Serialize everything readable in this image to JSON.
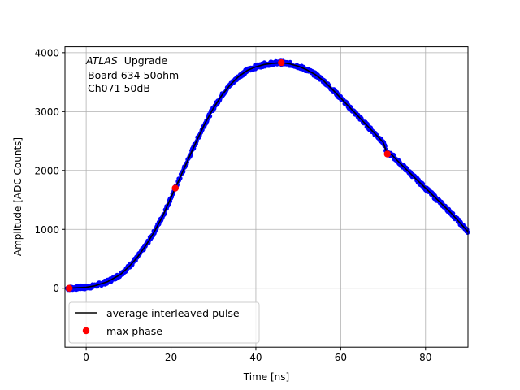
{
  "chart_data": {
    "type": "scatter",
    "xlabel": "Time [ns]",
    "ylabel": "Amplitude [ADC Counts]",
    "xlim": [
      -5,
      90
    ],
    "ylim": [
      -1000,
      4100
    ],
    "xticks": [
      0,
      20,
      40,
      60,
      80
    ],
    "yticks": [
      0,
      1000,
      2000,
      3000,
      4000
    ],
    "grid": true,
    "legend_position": "lower-left",
    "annotation": {
      "experiment": "ATLAS",
      "experiment_suffix": "Upgrade",
      "line2": "Board 634 50ohm",
      "line3": "Ch071 50dB"
    },
    "series": [
      {
        "name": "average interleaved pulse",
        "style": "line",
        "color": "#000000",
        "points": [
          [
            -4,
            0
          ],
          [
            0,
            15
          ],
          [
            2,
            40
          ],
          [
            5,
            110
          ],
          [
            8,
            230
          ],
          [
            10,
            360
          ],
          [
            12,
            520
          ],
          [
            14,
            720
          ],
          [
            16,
            950
          ],
          [
            18,
            1220
          ],
          [
            20,
            1540
          ],
          [
            21,
            1700
          ],
          [
            22,
            1860
          ],
          [
            24,
            2180
          ],
          [
            26,
            2500
          ],
          [
            28,
            2800
          ],
          [
            30,
            3060
          ],
          [
            32,
            3280
          ],
          [
            34,
            3460
          ],
          [
            36,
            3600
          ],
          [
            38,
            3700
          ],
          [
            40,
            3760
          ],
          [
            42,
            3800
          ],
          [
            44,
            3820
          ],
          [
            46,
            3830
          ],
          [
            48,
            3810
          ],
          [
            50,
            3770
          ],
          [
            52,
            3710
          ],
          [
            54,
            3630
          ],
          [
            56,
            3520
          ],
          [
            58,
            3380
          ],
          [
            60,
            3230
          ],
          [
            62,
            3080
          ],
          [
            64,
            2930
          ],
          [
            66,
            2780
          ],
          [
            68,
            2630
          ],
          [
            70,
            2480
          ],
          [
            71,
            2280
          ],
          [
            72,
            2270
          ],
          [
            74,
            2120
          ],
          [
            76,
            1980
          ],
          [
            78,
            1840
          ],
          [
            80,
            1700
          ],
          [
            82,
            1560
          ],
          [
            84,
            1420
          ],
          [
            86,
            1280
          ],
          [
            88,
            1120
          ],
          [
            90,
            960
          ]
        ]
      },
      {
        "name": "",
        "style": "dots",
        "color": "#0000ff",
        "scatter_amplitude": 35,
        "density_per_ns": 10
      },
      {
        "name": "max phase",
        "style": "markers",
        "color": "#ff0000",
        "points": [
          [
            -4,
            0
          ],
          [
            21,
            1700
          ],
          [
            46,
            3830
          ],
          [
            71,
            2280
          ]
        ]
      }
    ]
  }
}
